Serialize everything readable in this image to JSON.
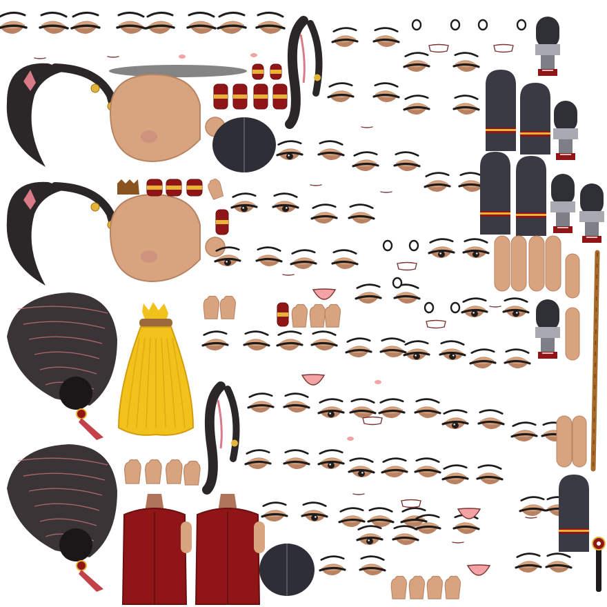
{
  "sheet": {
    "kind": "character sprite atlas",
    "background": "#ffffff"
  },
  "palette": {
    "skin": "#d7a47f",
    "skin_light": "#e0b48f",
    "skin_shadow": "#b98262",
    "hair": "#2b2628",
    "hair_dark": "#1b1719",
    "hair_pink": "#d97a86",
    "gold": "#e3b43a",
    "red": "#8f1517",
    "red_dark": "#6b0e10",
    "band_yellow": "#e9b339",
    "boot": "#3a3a44",
    "sock": "#a9a9b1",
    "brush_yellow": "#f1c21c",
    "brush_yellow_dark": "#d49c0b",
    "brush_band": "#9b6a3b",
    "staff": "#a76a2a",
    "eye_dark": "#1f1b1b",
    "mouth_pink": "#f3a3a3",
    "shadow": "#6e6e6e"
  },
  "parts": [
    "hair-side-piece",
    "head-base",
    "hair-bun-back",
    "brush-tail",
    "hair-braid",
    "vest-top",
    "boot",
    "leg-sock",
    "arm",
    "staff",
    "hand",
    "bracelet",
    "eye",
    "eyelid",
    "mouth",
    "pin"
  ]
}
